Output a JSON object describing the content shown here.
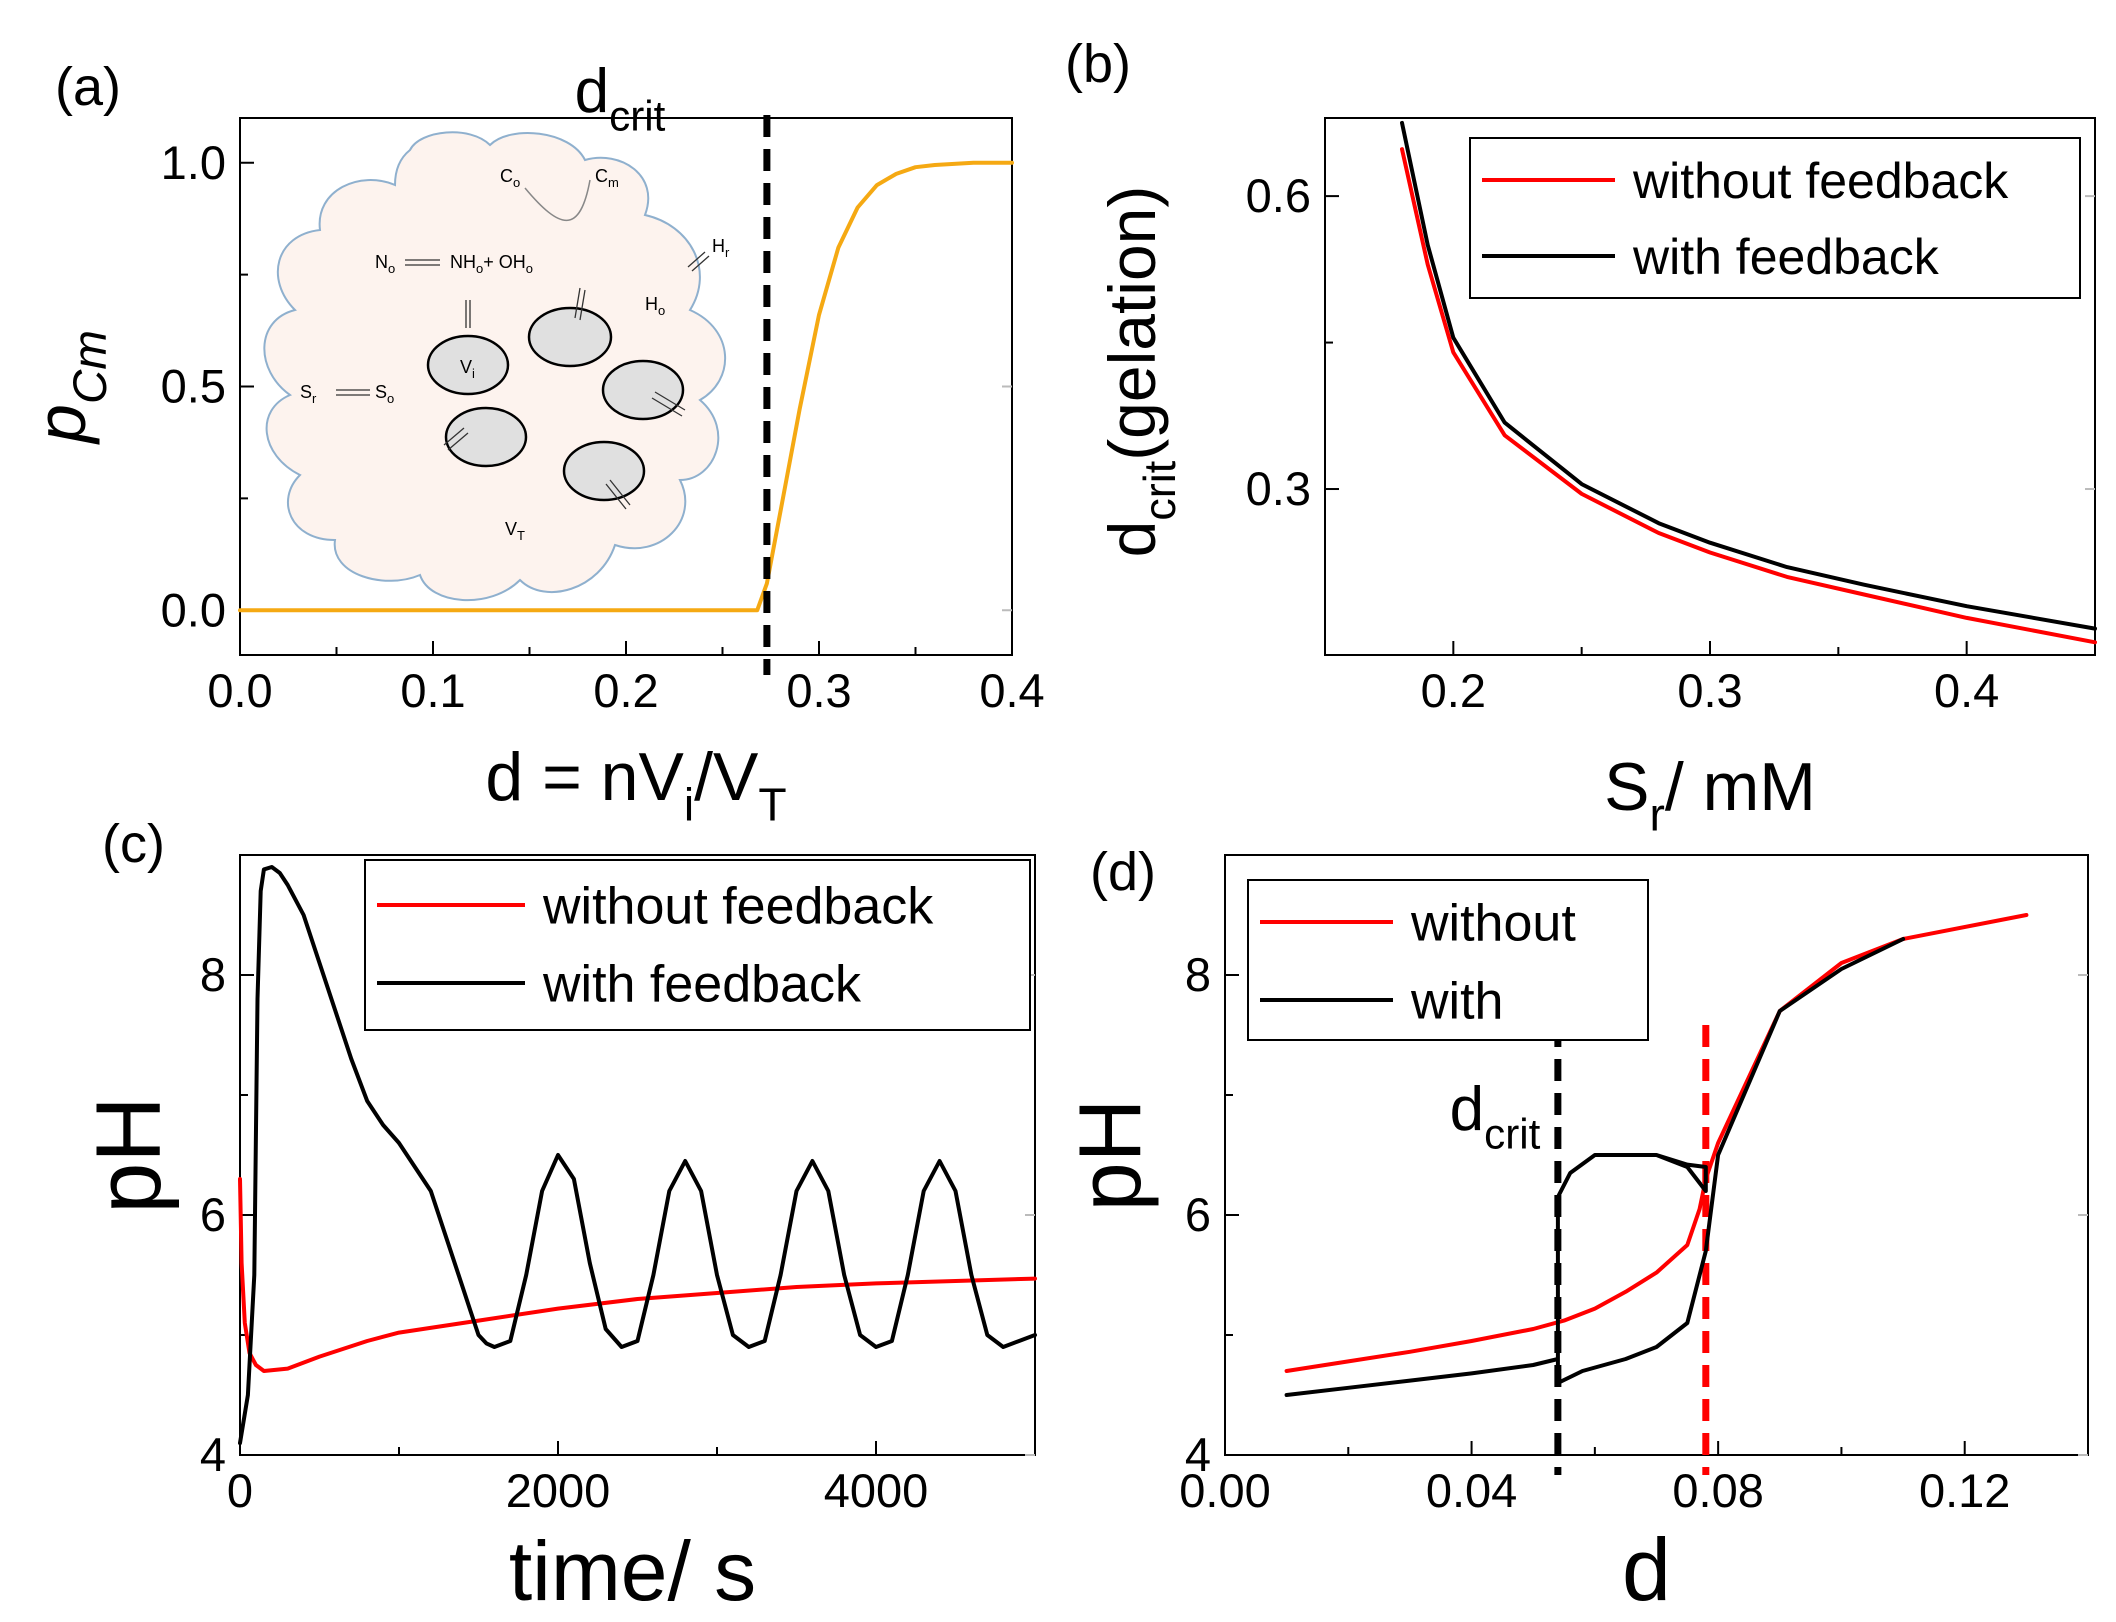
{
  "chart_data": [
    {
      "panel": "(a)",
      "type": "line",
      "ylabel": "p",
      "ylabel_sub": "Cm",
      "xlabel_parts": [
        "d = nV",
        "i",
        "/V",
        "T"
      ],
      "xlim": [
        0,
        0.4
      ],
      "ylim": [
        -0.1,
        1.1
      ],
      "xticks": [
        "0.0",
        "0.1",
        "0.2",
        "0.3",
        "0.4"
      ],
      "yticks": [
        "0.0",
        "0.5",
        "1.0"
      ],
      "vline": {
        "x": 0.273,
        "label": "d",
        "label_sub": "crit",
        "color": "#000000"
      },
      "series": [
        {
          "name": "p_Cm",
          "color": "#F5A913",
          "x": [
            0,
            0.1,
            0.2,
            0.268,
            0.273,
            0.28,
            0.29,
            0.3,
            0.31,
            0.32,
            0.33,
            0.34,
            0.35,
            0.36,
            0.38,
            0.4
          ],
          "y": [
            0,
            0,
            0,
            0,
            0.06,
            0.22,
            0.45,
            0.66,
            0.81,
            0.9,
            0.95,
            0.975,
            0.99,
            0.995,
            1.0,
            1.0
          ]
        }
      ],
      "inset": {
        "labels": [
          "C",
          "C",
          "N",
          "NH",
          "+ OH",
          "H",
          "H",
          "V",
          "S",
          "S",
          "V"
        ],
        "subs": [
          "o",
          "m",
          "o",
          "o",
          "o",
          "r",
          "o",
          "i",
          "r",
          "o",
          "T"
        ]
      }
    },
    {
      "panel": "(b)",
      "type": "line",
      "ylabel": "d",
      "ylabel_sub": "crit",
      "ylabel_tail": "(gelation)",
      "xlabel": "S",
      "xlabel_sub": "r",
      "xlabel_tail": "/ mM",
      "xlim": [
        0.15,
        0.45
      ],
      "ylim": [
        0.13,
        0.68
      ],
      "xticks": [
        "0.2",
        "0.3",
        "0.4"
      ],
      "yticks": [
        "0.3",
        "0.6"
      ],
      "series": [
        {
          "name": "without feedback",
          "color": "#FF0000",
          "x": [
            0.18,
            0.19,
            0.2,
            0.22,
            0.25,
            0.28,
            0.3,
            0.33,
            0.36,
            0.4,
            0.45
          ],
          "y": [
            0.648,
            0.53,
            0.44,
            0.355,
            0.295,
            0.255,
            0.235,
            0.21,
            0.192,
            0.168,
            0.143
          ]
        },
        {
          "name": "with feedback",
          "color": "#000000",
          "x": [
            0.18,
            0.19,
            0.2,
            0.22,
            0.25,
            0.28,
            0.3,
            0.33,
            0.36,
            0.4,
            0.45
          ],
          "y": [
            0.675,
            0.55,
            0.455,
            0.368,
            0.305,
            0.265,
            0.245,
            0.22,
            0.202,
            0.18,
            0.157
          ]
        }
      ]
    },
    {
      "panel": "(c)",
      "type": "line",
      "ylabel": "pH",
      "xlabel": "time/ s",
      "xlim": [
        0,
        5000
      ],
      "ylim": [
        4,
        9
      ],
      "xticks": [
        "0",
        "2000",
        "4000"
      ],
      "yticks": [
        "4",
        "6",
        "8"
      ],
      "series": [
        {
          "name": "without feedback",
          "color": "#FF0000",
          "x": [
            0,
            10,
            30,
            60,
            100,
            150,
            300,
            500,
            800,
            1000,
            1500,
            2000,
            2500,
            3000,
            3500,
            4000,
            4500,
            5000
          ],
          "y": [
            6.3,
            5.6,
            5.1,
            4.85,
            4.75,
            4.7,
            4.72,
            4.82,
            4.95,
            5.02,
            5.12,
            5.22,
            5.3,
            5.35,
            5.4,
            5.43,
            5.45,
            5.47
          ]
        },
        {
          "name": "with feedback",
          "color": "#000000",
          "x": [
            0,
            50,
            90,
            110,
            130,
            150,
            200,
            250,
            300,
            400,
            500,
            600,
            700,
            800,
            900,
            1000,
            1100,
            1200,
            1300,
            1400,
            1450,
            1500,
            1550,
            1600,
            1700,
            1800,
            1900,
            2000,
            2100,
            2200,
            2300,
            2400,
            2500,
            2600,
            2700,
            2800,
            2900,
            3000,
            3100,
            3200,
            3300,
            3400,
            3500,
            3600,
            3700,
            3800,
            3900,
            4000,
            4100,
            4200,
            4300,
            4400,
            4500,
            4600,
            4700,
            4800,
            4900,
            5000
          ],
          "y": [
            4.1,
            4.5,
            5.5,
            7.8,
            8.7,
            8.88,
            8.9,
            8.85,
            8.75,
            8.5,
            8.1,
            7.7,
            7.3,
            6.95,
            6.75,
            6.6,
            6.4,
            6.2,
            5.8,
            5.4,
            5.2,
            5.0,
            4.93,
            4.9,
            4.95,
            5.5,
            6.2,
            6.5,
            6.3,
            5.6,
            5.05,
            4.9,
            4.95,
            5.5,
            6.2,
            6.45,
            6.2,
            5.5,
            5.0,
            4.9,
            4.95,
            5.5,
            6.2,
            6.45,
            6.2,
            5.5,
            5.0,
            4.9,
            4.95,
            5.5,
            6.2,
            6.45,
            6.2,
            5.5,
            5.0,
            4.9,
            4.95,
            5.0
          ]
        }
      ]
    },
    {
      "panel": "(d)",
      "type": "line",
      "ylabel": "pH",
      "xlabel": "d",
      "xlim": [
        0,
        0.14
      ],
      "ylim": [
        4,
        9
      ],
      "xticks": [
        "0.00",
        "0.04",
        "0.08",
        "0.12"
      ],
      "yticks": [
        "4",
        "6",
        "8"
      ],
      "vlines": [
        {
          "x": 0.054,
          "color": "#000000",
          "label": "d",
          "label_sub": "crit"
        },
        {
          "x": 0.078,
          "color": "#FF0000"
        }
      ],
      "series": [
        {
          "name": "without",
          "color": "#FF0000",
          "x": [
            0.01,
            0.02,
            0.03,
            0.04,
            0.05,
            0.055,
            0.06,
            0.065,
            0.07,
            0.075,
            0.077,
            0.078,
            0.08,
            0.09,
            0.1,
            0.11,
            0.13
          ],
          "y": [
            4.7,
            4.78,
            4.86,
            4.95,
            5.05,
            5.12,
            5.22,
            5.36,
            5.52,
            5.75,
            6.05,
            6.3,
            6.6,
            7.7,
            8.1,
            8.3,
            8.5
          ]
        },
        {
          "name": "with",
          "color": "#000000",
          "x": [
            0.01,
            0.02,
            0.03,
            0.04,
            0.05,
            0.054,
            0.054,
            0.056,
            0.06,
            0.065,
            0.07,
            0.075,
            0.078,
            0.078,
            0.075,
            0.07,
            0.065,
            0.06,
            0.056,
            0.054,
            0.054,
            0.058,
            0.065,
            0.07,
            0.075,
            0.078,
            0.08,
            0.09,
            0.1,
            0.11
          ],
          "y": [
            4.5,
            4.56,
            4.62,
            4.68,
            4.75,
            4.8,
            6.15,
            6.35,
            6.5,
            6.5,
            6.5,
            6.42,
            6.4,
            6.2,
            6.4,
            6.5,
            6.5,
            6.5,
            6.35,
            6.15,
            4.6,
            4.7,
            4.8,
            4.9,
            5.1,
            5.7,
            6.5,
            7.7,
            8.05,
            8.3
          ]
        }
      ]
    }
  ]
}
